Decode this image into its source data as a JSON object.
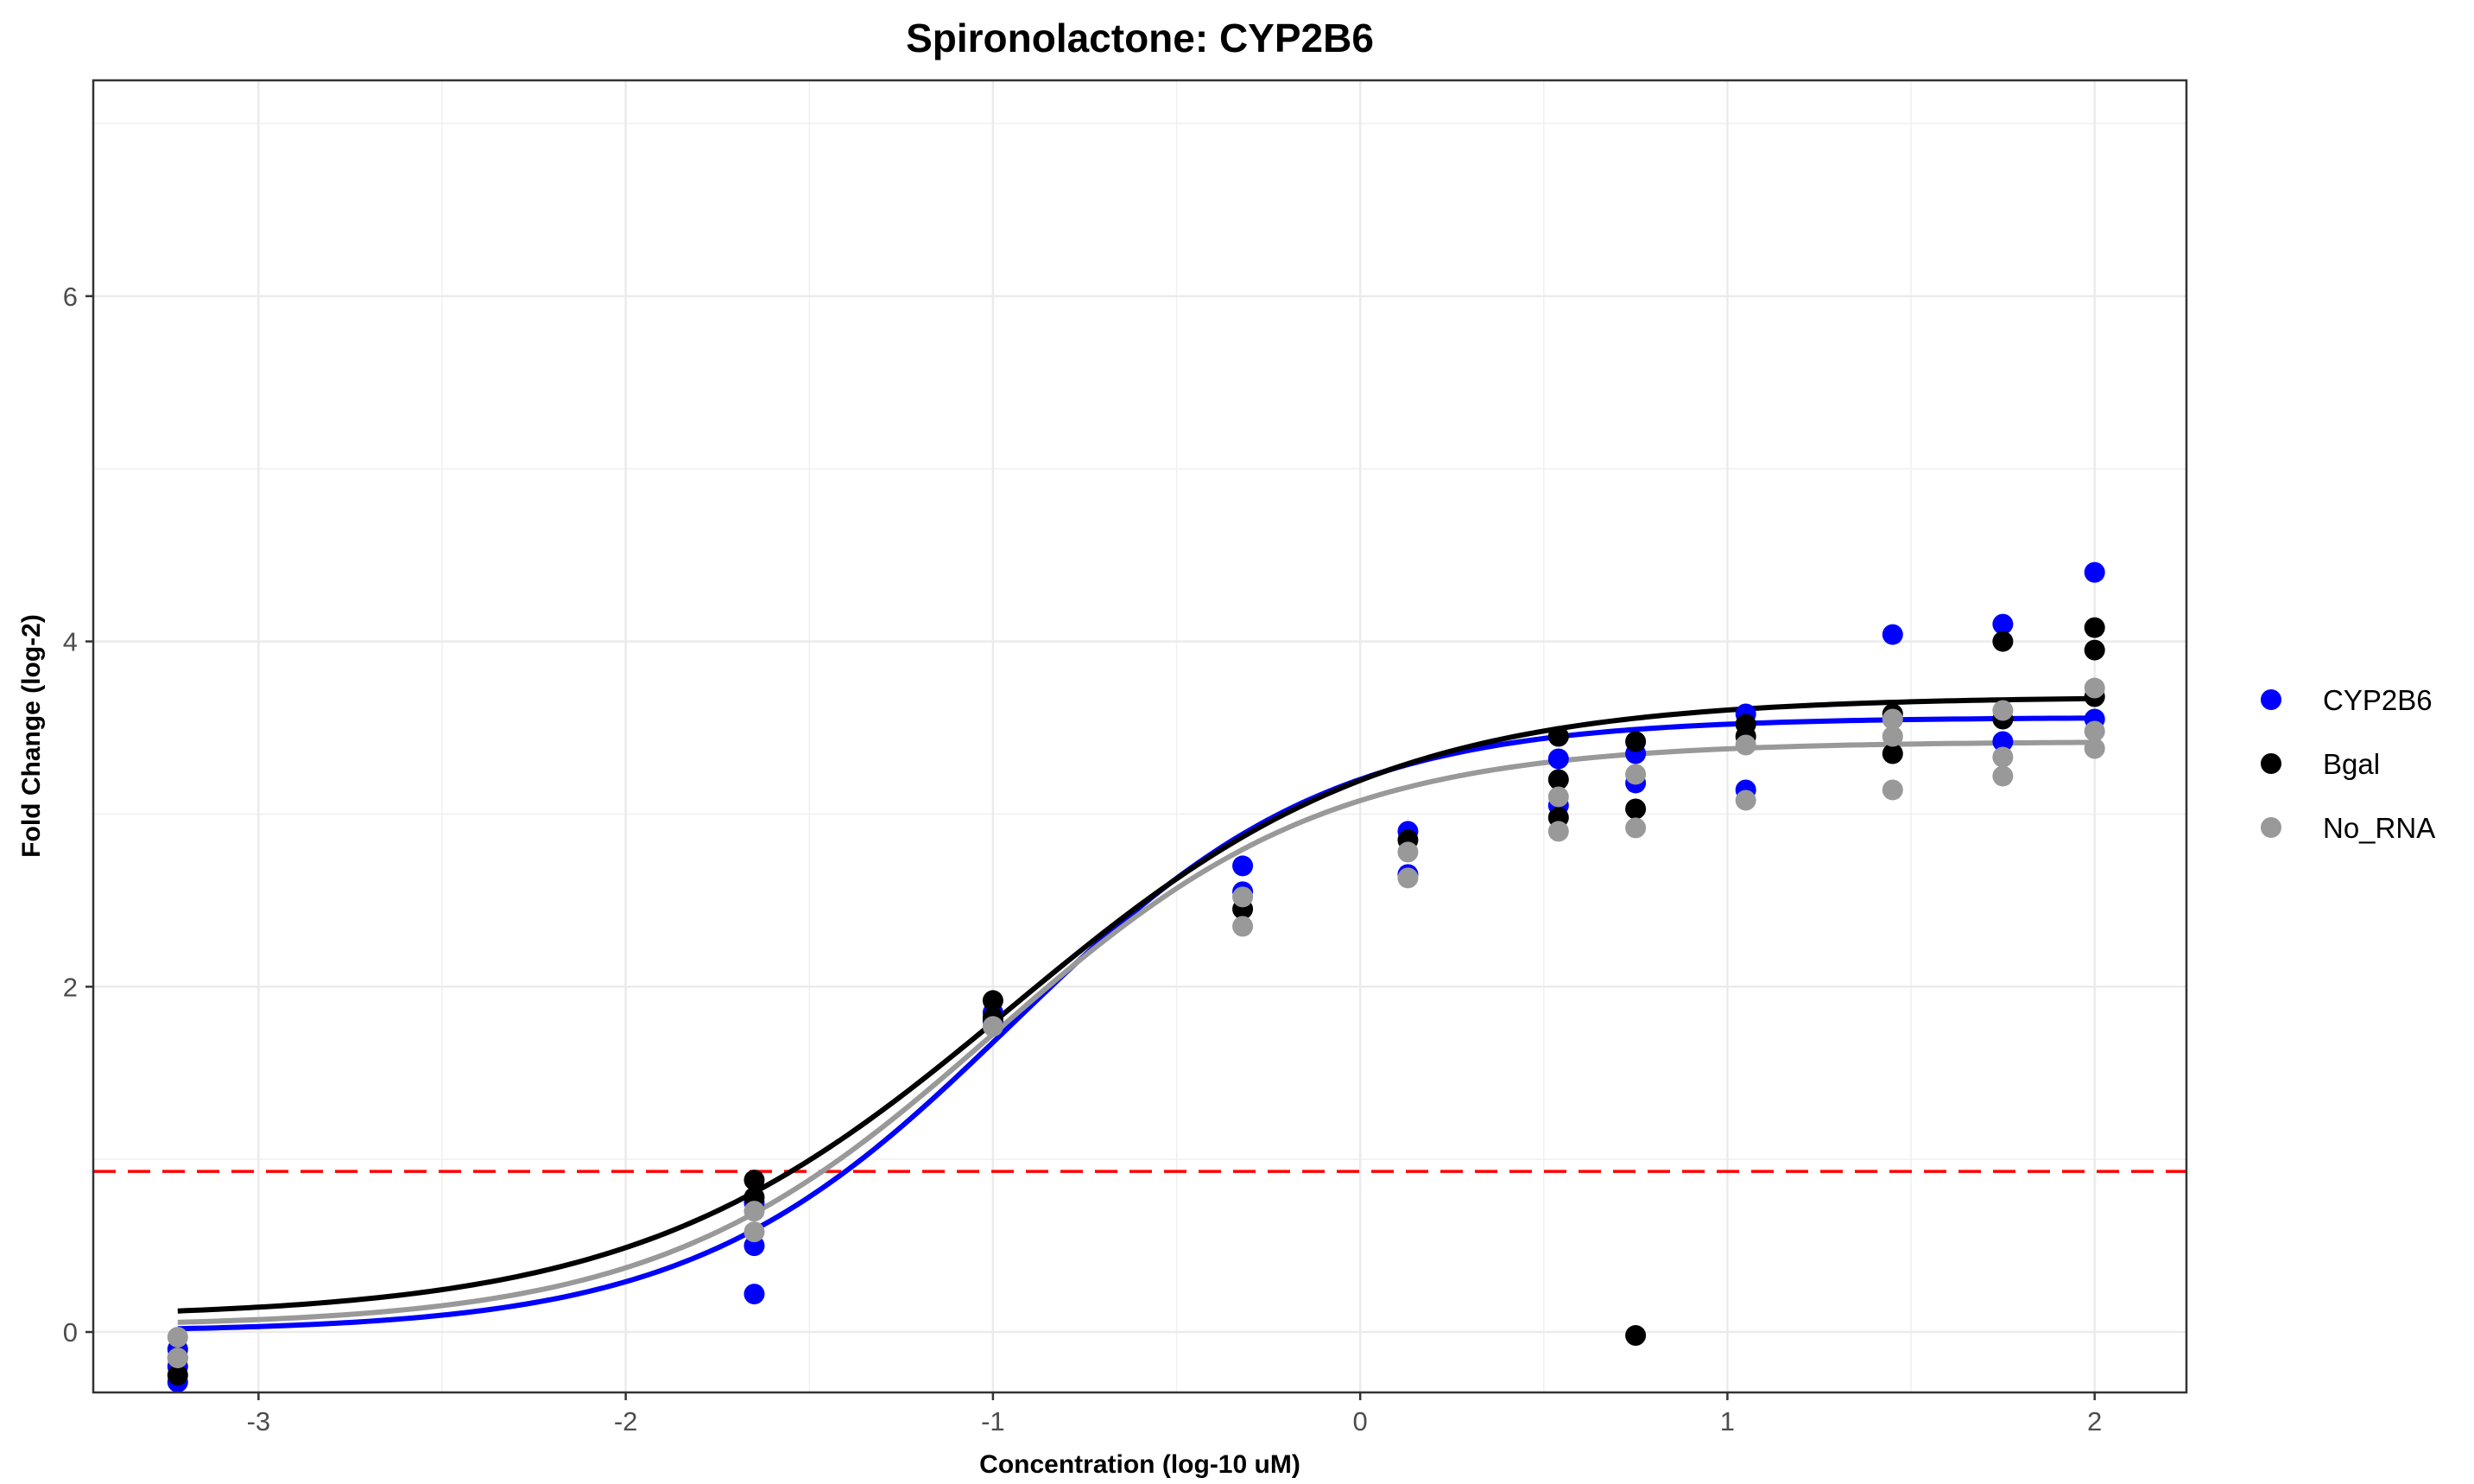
{
  "chart_data": {
    "type": "scatter",
    "title": "Spironolactone: CYP2B6",
    "xlabel": "Concentration (log-10 uM)",
    "ylabel": "Fold Change (log-2)",
    "xlim": [
      -3.45,
      2.25
    ],
    "ylim": [
      -0.35,
      7.25
    ],
    "x_ticks": [
      -3,
      -2,
      -1,
      0,
      1,
      2
    ],
    "x_tick_labels": [
      "-3",
      "-2",
      "-1",
      "0",
      "1",
      "2"
    ],
    "y_ticks": [
      0,
      2,
      4,
      6
    ],
    "y_tick_labels": [
      "0",
      "2",
      "4",
      "6"
    ],
    "grid": true,
    "legend_position": "right",
    "threshold": {
      "y": 0.93,
      "color": "#ff0000",
      "style": "dashed"
    },
    "series": [
      {
        "name": "CYP2B6",
        "color": "#0000ff",
        "points": [
          [
            -3.22,
            -0.29
          ],
          [
            -3.22,
            -0.2
          ],
          [
            -3.22,
            -0.1
          ],
          [
            -1.65,
            0.22
          ],
          [
            -1.65,
            0.5
          ],
          [
            -1.65,
            0.75
          ],
          [
            -1.0,
            1.85
          ],
          [
            -1.0,
            1.8
          ],
          [
            -0.32,
            2.7
          ],
          [
            -0.32,
            2.55
          ],
          [
            0.13,
            2.9
          ],
          [
            0.13,
            2.65
          ],
          [
            0.54,
            3.32
          ],
          [
            0.54,
            3.05
          ],
          [
            0.75,
            3.35
          ],
          [
            0.75,
            3.18
          ],
          [
            1.05,
            3.58
          ],
          [
            1.05,
            3.14
          ],
          [
            1.45,
            4.04
          ],
          [
            1.45,
            3.55
          ],
          [
            1.75,
            4.1
          ],
          [
            1.75,
            3.42
          ],
          [
            2.0,
            4.4
          ],
          [
            2.0,
            3.55
          ]
        ],
        "curve": {
          "bottom": 0.0,
          "top": 3.56,
          "ec50": -0.95,
          "slope": 1.0
        }
      },
      {
        "name": "Bgal",
        "color": "#000000",
        "points": [
          [
            -3.22,
            -0.25
          ],
          [
            -3.22,
            -0.15
          ],
          [
            -1.65,
            0.88
          ],
          [
            -1.65,
            0.78
          ],
          [
            -1.0,
            1.92
          ],
          [
            -1.0,
            1.82
          ],
          [
            -0.32,
            2.45
          ],
          [
            0.13,
            2.85
          ],
          [
            0.54,
            3.45
          ],
          [
            0.54,
            3.2
          ],
          [
            0.54,
            2.98
          ],
          [
            0.75,
            3.42
          ],
          [
            0.75,
            3.03
          ],
          [
            0.75,
            -0.02
          ],
          [
            1.05,
            3.52
          ],
          [
            1.05,
            3.45
          ],
          [
            1.45,
            3.58
          ],
          [
            1.45,
            3.35
          ],
          [
            1.75,
            4.0
          ],
          [
            1.75,
            3.55
          ],
          [
            2.0,
            4.08
          ],
          [
            2.0,
            3.95
          ],
          [
            2.0,
            3.68
          ]
        ],
        "curve": {
          "bottom": 0.08,
          "top": 3.68,
          "ec50": -0.95,
          "slope": 0.85
        }
      },
      {
        "name": "No_RNA",
        "color": "#999999",
        "points": [
          [
            -3.22,
            -0.03
          ],
          [
            -3.22,
            -0.15
          ],
          [
            -1.65,
            0.7
          ],
          [
            -1.65,
            0.58
          ],
          [
            -1.0,
            1.77
          ],
          [
            -0.32,
            2.52
          ],
          [
            -0.32,
            2.35
          ],
          [
            0.13,
            2.78
          ],
          [
            0.13,
            2.63
          ],
          [
            0.54,
            3.1
          ],
          [
            0.54,
            2.9
          ],
          [
            0.75,
            3.23
          ],
          [
            0.75,
            2.92
          ],
          [
            1.05,
            3.4
          ],
          [
            1.05,
            3.08
          ],
          [
            1.45,
            3.55
          ],
          [
            1.45,
            3.45
          ],
          [
            1.45,
            3.14
          ],
          [
            1.75,
            3.6
          ],
          [
            1.75,
            3.33
          ],
          [
            1.75,
            3.22
          ],
          [
            2.0,
            3.73
          ],
          [
            2.0,
            3.48
          ],
          [
            2.0,
            3.38
          ]
        ],
        "curve": {
          "bottom": 0.03,
          "top": 3.42,
          "ec50": -1.0,
          "slope": 0.95
        }
      }
    ]
  }
}
